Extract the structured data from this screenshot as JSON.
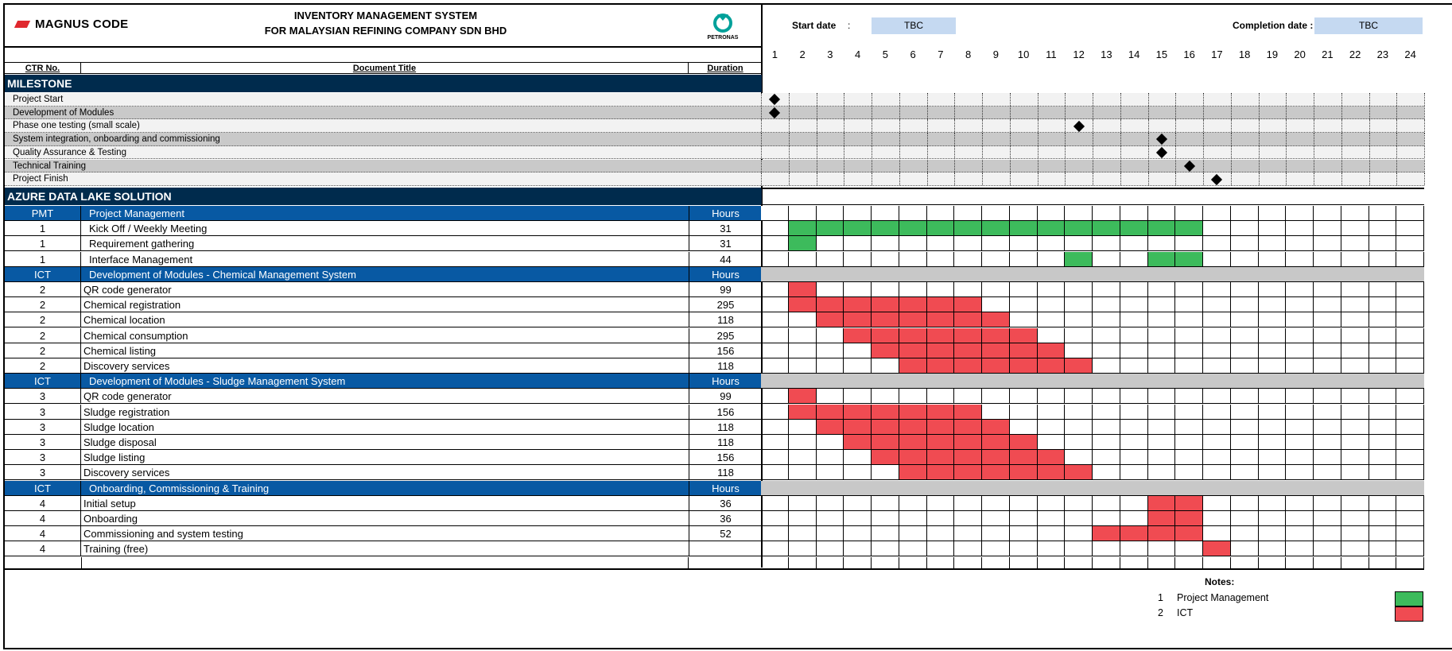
{
  "header": {
    "brand": "MAGNUS CODE",
    "title_line1": "INVENTORY MANAGEMENT SYSTEM",
    "title_line2": "FOR MALAYSIAN REFINING COMPANY SDN BHD",
    "client_logo_text": "PETRONAS",
    "start_label": "Start date",
    "start_value": "TBC",
    "completion_label": "Completion date :",
    "completion_value": "TBC"
  },
  "columns": {
    "ctr": "CTR No.",
    "title": "Document Title",
    "duration": "Duration"
  },
  "weeks": [
    "1",
    "2",
    "3",
    "4",
    "5",
    "6",
    "7",
    "8",
    "9",
    "10",
    "11",
    "12",
    "13",
    "14",
    "15",
    "16",
    "17",
    "18",
    "19",
    "20",
    "21",
    "22",
    "23",
    "24"
  ],
  "milestone_section": "MILESTONE",
  "milestones": [
    {
      "label": "Project Start",
      "week": 1
    },
    {
      "label": "Development of Modules",
      "week": 1
    },
    {
      "label": "Phase one testing (small scale)",
      "week": 12
    },
    {
      "label": "System integration, onboarding and commissioning",
      "week": 15
    },
    {
      "label": "Quality Assurance & Testing",
      "week": 15
    },
    {
      "label": "Technical Training",
      "week": 16
    },
    {
      "label": "Project Finish",
      "week": 17
    }
  ],
  "solution_section": "AZURE DATA LAKE SOLUTION",
  "groups": [
    {
      "code": "PMT",
      "title": "Project Management",
      "unit": "Hours",
      "color": "pm",
      "rows": [
        {
          "ctr": "1",
          "title": "Kick Off / Weekly Meeting",
          "hours": "31",
          "start": 2,
          "end": 16
        },
        {
          "ctr": "1",
          "title": "Requirement gathering",
          "hours": "31",
          "start": 2,
          "end": 2
        },
        {
          "ctr": "1",
          "title": "Interface Management",
          "hours": "44",
          "bars": [
            [
              12,
              12
            ],
            [
              15,
              16
            ]
          ]
        }
      ]
    },
    {
      "code": "ICT",
      "title": "Development of Modules - Chemical Management System",
      "unit": "Hours",
      "color": "ict",
      "rows": [
        {
          "ctr": "2",
          "title": "QR code generator",
          "hours": "99",
          "start": 2,
          "end": 2
        },
        {
          "ctr": "2",
          "title": "Chemical registration",
          "hours": "295",
          "start": 2,
          "end": 8
        },
        {
          "ctr": "2",
          "title": "Chemical location",
          "hours": "118",
          "start": 3,
          "end": 9
        },
        {
          "ctr": "2",
          "title": "Chemical consumption",
          "hours": "295",
          "start": 4,
          "end": 10
        },
        {
          "ctr": "2",
          "title": "Chemical listing",
          "hours": "156",
          "start": 5,
          "end": 11
        },
        {
          "ctr": "2",
          "title": "Discovery services",
          "hours": "118",
          "start": 6,
          "end": 12
        }
      ]
    },
    {
      "code": "ICT",
      "title": "Development of Modules - Sludge Management System",
      "unit": "Hours",
      "color": "ict",
      "rows": [
        {
          "ctr": "3",
          "title": "QR code generator",
          "hours": "99",
          "start": 2,
          "end": 2
        },
        {
          "ctr": "3",
          "title": "Sludge registration",
          "hours": "156",
          "start": 2,
          "end": 8
        },
        {
          "ctr": "3",
          "title": "Sludge location",
          "hours": "118",
          "start": 3,
          "end": 9
        },
        {
          "ctr": "3",
          "title": "Sludge disposal",
          "hours": "118",
          "start": 4,
          "end": 10
        },
        {
          "ctr": "3",
          "title": "Sludge listing",
          "hours": "156",
          "start": 5,
          "end": 11
        },
        {
          "ctr": "3",
          "title": "Discovery services",
          "hours": "118",
          "start": 6,
          "end": 12
        }
      ]
    },
    {
      "code": "ICT",
      "title": "Onboarding, Commissioning & Training",
      "unit": "Hours",
      "color": "ict",
      "rows": [
        {
          "ctr": "4",
          "title": "Initial setup",
          "hours": "36",
          "start": 15,
          "end": 16
        },
        {
          "ctr": "4",
          "title": "Onboarding",
          "hours": "36",
          "start": 15,
          "end": 16
        },
        {
          "ctr": "4",
          "title": "Commissioning and system testing",
          "hours": "52",
          "start": 13,
          "end": 16
        },
        {
          "ctr": "4",
          "title": "Training (free)",
          "hours": "",
          "start": 17,
          "end": 17
        }
      ]
    }
  ],
  "notes": {
    "title": "Notes:",
    "items": [
      {
        "num": "1",
        "label": "Project Management",
        "color": "#3dbb5c"
      },
      {
        "num": "2",
        "label": "ICT",
        "color": "#f04b52"
      }
    ]
  },
  "colors": {
    "pm": "#3dbb5c",
    "ict": "#f04b52",
    "navy": "#002b4d",
    "blue": "#0859a3",
    "milestone_bg_a": "#f2f2f2",
    "milestone_bg_b": "#c9c9c9",
    "grey_row": "#c8c8c8",
    "input_fill": "#c5d9f1"
  }
}
